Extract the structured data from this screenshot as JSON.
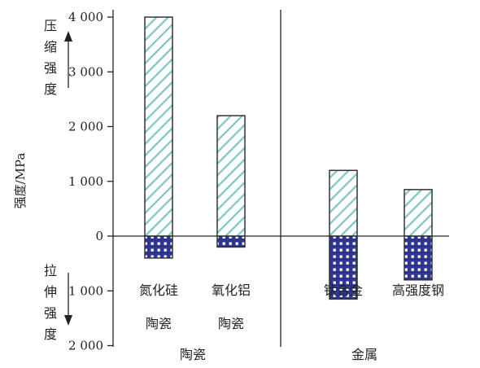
{
  "chart_data": {
    "type": "bar",
    "ylabel": "强度/MPa",
    "yticks": [
      {
        "value": 4000,
        "label": "4 000"
      },
      {
        "value": 3000,
        "label": "3 000"
      },
      {
        "value": 2000,
        "label": "2 000"
      },
      {
        "value": 1000,
        "label": "1 000"
      },
      {
        "value": 0,
        "label": "0"
      },
      {
        "value": -1000,
        "label": "1 000"
      },
      {
        "value": -2000,
        "label": "2 000"
      }
    ],
    "ylim": [
      -2000,
      4000
    ],
    "compressive_label": [
      "压",
      "缩",
      "强",
      "度"
    ],
    "tensile_label": [
      "拉",
      "伸",
      "强",
      "度"
    ],
    "categories": [
      {
        "name": "氮化硅",
        "name2": "陶瓷"
      },
      {
        "name": "氧化铝",
        "name2": "陶瓷"
      },
      {
        "name": "钛合金",
        "name2": ""
      },
      {
        "name": "高强度钢",
        "name2": ""
      }
    ],
    "groups": [
      "陶瓷",
      "金属"
    ],
    "series": [
      {
        "name": "压缩强度",
        "values": [
          4000,
          2200,
          1200,
          850
        ]
      },
      {
        "name": "拉伸强度",
        "values": [
          400,
          200,
          1150,
          800
        ]
      }
    ],
    "colors": {
      "compressive_hatch": "#7fc6c6",
      "tensile_fill": "#2e3590",
      "tensile_dot": "#ffffff",
      "outline": "#333333"
    }
  }
}
